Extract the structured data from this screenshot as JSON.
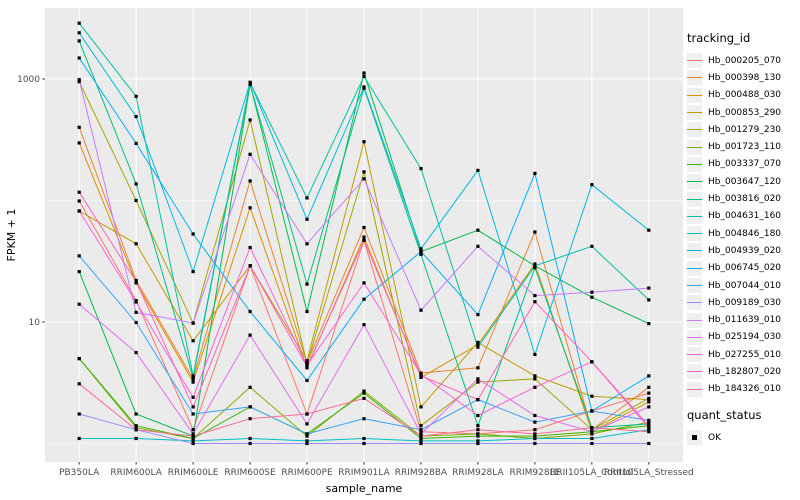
{
  "colors": {
    "panel_bg": "#EBEBEB",
    "grid_major": "#FFFFFF",
    "grid_minor": "#FFFFFF",
    "axis_tick": "#333333",
    "axis_text": "#4D4D4D",
    "axis_title": "#000000",
    "marker": "#000000",
    "legend_key_bg": "#EFEFEF",
    "background": "#FFFFFF"
  },
  "chart_data": {
    "type": "line",
    "x_type": "categorical",
    "title": "",
    "xlabel": "sample_name",
    "ylabel": "FPKM + 1",
    "y_scale": "log10",
    "y_major_ticks": [
      10,
      1000
    ],
    "y_tick_labels": [
      "10",
      "1000"
    ],
    "y_minor_gridlines": [
      1,
      100
    ],
    "ylim_log": [
      -0.18,
      3.585
    ],
    "grid": true,
    "legend_position": "right",
    "legend_title": "tracking_id",
    "quant_legend_title": "quant_status",
    "quant_legend_items": [
      {
        "label": "OK",
        "marker": "black-square"
      }
    ],
    "marker": "black-square",
    "categories": [
      "PB350LA",
      "RRIM600LA",
      "RRIM600LE",
      "RRIM600SE",
      "RRIM600PE",
      "RRIM901LA",
      "RRIM928BA",
      "RRIM928LA",
      "RRIM928LE",
      "RRII105LA_Control",
      "RRII105LA_Stressed"
    ],
    "series": [
      {
        "name": "Hb_000205_070",
        "color": "#F8766D",
        "values": [
          99,
          15,
          1.3,
          29,
          1.75,
          47,
          1.25,
          1.2,
          1.3,
          1.85,
          2.6
        ]
      },
      {
        "name": "Hb_000398_130",
        "color": "#EA8331",
        "values": [
          400,
          22,
          3.4,
          145,
          4.6,
          60,
          3.8,
          4.2,
          55,
          1.3,
          2.9
        ]
      },
      {
        "name": "Hb_000488_030",
        "color": "#D89000",
        "values": [
          298,
          21,
          3.2,
          87,
          4.2,
          50,
          3.5,
          6.5,
          30,
          1.25,
          2.2
        ]
      },
      {
        "name": "Hb_000853_290",
        "color": "#C09B00",
        "values": [
          82,
          44,
          7.0,
          29,
          4.8,
          305,
          2.0,
          6.8,
          3.6,
          2.45,
          2.3
        ]
      },
      {
        "name": "Hb_001279_230",
        "color": "#A3A500",
        "values": [
          950,
          100,
          9.8,
          460,
          4.5,
          172,
          1.4,
          3.2,
          3.4,
          1.3,
          2.35
        ]
      },
      {
        "name": "Hb_001723_110",
        "color": "#7CAE00",
        "values": [
          5.0,
          1.35,
          1.1,
          2.9,
          1.15,
          2.7,
          1.15,
          1.2,
          1.1,
          1.2,
          1.5
        ]
      },
      {
        "name": "Hb_003337_070",
        "color": "#39B600",
        "values": [
          5.0,
          1.4,
          1.1,
          2.0,
          1.2,
          2.6,
          1.1,
          1.15,
          1.15,
          1.25,
          1.4
        ]
      },
      {
        "name": "Hb_003647_120",
        "color": "#00BB4E",
        "values": [
          26,
          1.75,
          1.15,
          910,
          12.2,
          1120,
          38,
          57,
          29,
          16,
          9.7
        ]
      },
      {
        "name": "Hb_003816_020",
        "color": "#00BF7D",
        "values": [
          2060,
          137,
          3.5,
          900,
          20.5,
          840,
          36,
          1.4,
          28,
          1.35,
          1.45
        ]
      },
      {
        "name": "Hb_004631_160",
        "color": "#00C1A3",
        "values": [
          2880,
          720,
          3.6,
          930,
          105,
          1050,
          183,
          6.2,
          29,
          42,
          15.2
        ]
      },
      {
        "name": "Hb_004846_180",
        "color": "#00BFC4",
        "values": [
          1.1,
          1.1,
          1.05,
          1.1,
          1.05,
          1.1,
          1.05,
          1.05,
          1.1,
          1.1,
          1.3
        ]
      },
      {
        "name": "Hb_004939_020",
        "color": "#00BADE",
        "values": [
          2400,
          490,
          26,
          940,
          70,
          860,
          40,
          177,
          5.4,
          135,
          57
        ]
      },
      {
        "name": "Hb_006745_020",
        "color": "#00B0F6",
        "values": [
          1490,
          295,
          53,
          12.2,
          3.3,
          15.4,
          38,
          11.5,
          167,
          1.85,
          3.6
        ]
      },
      {
        "name": "Hb_007044_010",
        "color": "#35A2FF",
        "values": [
          35,
          9.9,
          1.75,
          2.0,
          1.2,
          1.6,
          1.3,
          2.3,
          1.5,
          1.85,
          1.55
        ]
      },
      {
        "name": "Hb_009189_030",
        "color": "#9590FF",
        "values": [
          1.75,
          1.3,
          1.0,
          1.0,
          1.0,
          1.0,
          1.0,
          1.0,
          1.0,
          1.0,
          1.0
        ]
      },
      {
        "name": "Hb_011639_010",
        "color": "#C77CFF",
        "values": [
          986,
          12,
          9.8,
          240,
          44,
          151,
          12.5,
          42,
          16.5,
          17.6,
          19
        ]
      },
      {
        "name": "Hb_025194_030",
        "color": "#E76BF3",
        "values": [
          14,
          5.6,
          1.2,
          7.8,
          1.45,
          9.5,
          1.2,
          3.4,
          1.7,
          1.25,
          2.0
        ]
      },
      {
        "name": "Hb_027255_010",
        "color": "#FA62DB",
        "values": [
          82,
          14.6,
          2.4,
          41,
          4.4,
          21,
          3.7,
          1.7,
          2.9,
          4.7,
          1.4
        ]
      },
      {
        "name": "Hb_182807_020",
        "color": "#FF62BC",
        "values": [
          117,
          21.5,
          2.0,
          29,
          4.3,
          47,
          3.6,
          2.3,
          14.7,
          4.7,
          1.35
        ]
      },
      {
        "name": "Hb_184326_010",
        "color": "#FF6A98",
        "values": [
          3.1,
          1.3,
          1.15,
          1.6,
          1.75,
          2.35,
          1.15,
          1.3,
          1.2,
          1.35,
          1.25
        ]
      }
    ]
  }
}
